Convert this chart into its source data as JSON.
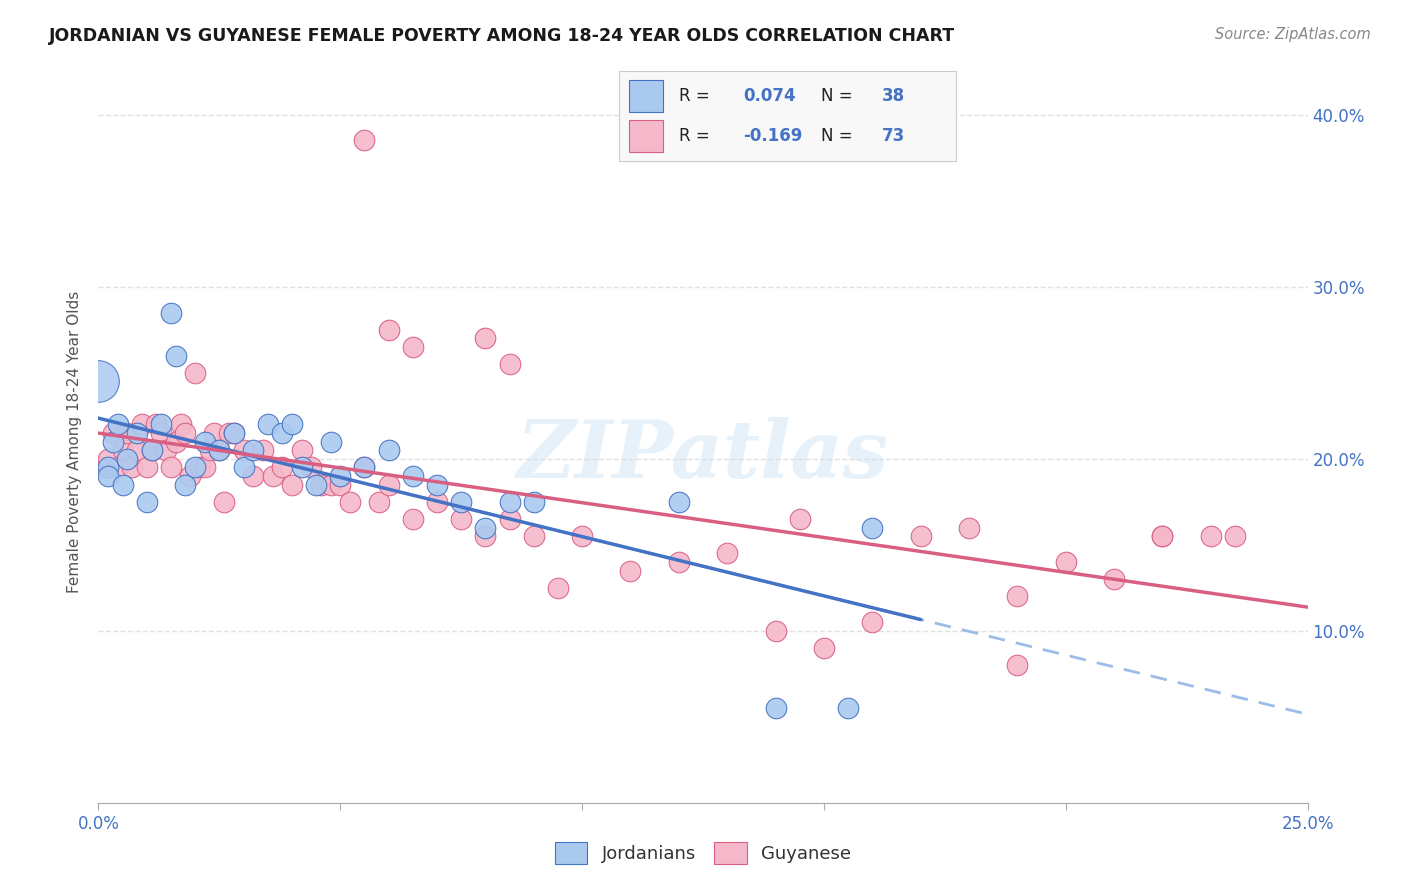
{
  "title": "JORDANIAN VS GUYANESE FEMALE POVERTY AMONG 18-24 YEAR OLDS CORRELATION CHART",
  "source": "Source: ZipAtlas.com",
  "ylabel": "Female Poverty Among 18-24 Year Olds",
  "xlim": [
    0.0,
    0.25
  ],
  "ylim": [
    0.0,
    0.42
  ],
  "x_ticks": [
    0.0,
    0.05,
    0.1,
    0.15,
    0.2,
    0.25
  ],
  "x_tick_labels": [
    "0.0%",
    "",
    "",
    "",
    "",
    "25.0%"
  ],
  "y_ticks": [
    0.0,
    0.1,
    0.2,
    0.3,
    0.4
  ],
  "y_tick_labels_right": [
    "",
    "10.0%",
    "20.0%",
    "30.0%",
    "40.0%"
  ],
  "jordanian_color": "#aac9ef",
  "guyanese_color": "#f5b8cb",
  "trend_jordan_color": "#4472c4",
  "trend_guyana_color": "#d95f82",
  "trend_jordan_dash_color": "#9cbde8",
  "R_jordan": 0.074,
  "N_jordan": 38,
  "R_guyana": -0.169,
  "N_guyana": 73,
  "watermark": "ZIPatlas",
  "background_color": "#ffffff",
  "grid_color": "#e0e0e0",
  "jordan_x": [
    0.002,
    0.002,
    0.003,
    0.004,
    0.005,
    0.006,
    0.008,
    0.01,
    0.011,
    0.013,
    0.015,
    0.016,
    0.018,
    0.02,
    0.022,
    0.025,
    0.028,
    0.03,
    0.032,
    0.035,
    0.038,
    0.04,
    0.042,
    0.045,
    0.048,
    0.05,
    0.055,
    0.06,
    0.065,
    0.07,
    0.075,
    0.08,
    0.085,
    0.09,
    0.12,
    0.14,
    0.155,
    0.16
  ],
  "jordan_y": [
    0.195,
    0.19,
    0.21,
    0.22,
    0.185,
    0.2,
    0.215,
    0.175,
    0.205,
    0.22,
    0.285,
    0.26,
    0.185,
    0.195,
    0.21,
    0.205,
    0.215,
    0.195,
    0.205,
    0.22,
    0.215,
    0.22,
    0.195,
    0.185,
    0.21,
    0.19,
    0.195,
    0.205,
    0.19,
    0.185,
    0.175,
    0.16,
    0.175,
    0.175,
    0.175,
    0.055,
    0.055,
    0.16
  ],
  "guyana_x": [
    0.001,
    0.002,
    0.003,
    0.004,
    0.005,
    0.006,
    0.007,
    0.008,
    0.009,
    0.01,
    0.011,
    0.012,
    0.013,
    0.014,
    0.015,
    0.016,
    0.017,
    0.018,
    0.019,
    0.02,
    0.021,
    0.022,
    0.023,
    0.024,
    0.025,
    0.026,
    0.027,
    0.028,
    0.03,
    0.032,
    0.034,
    0.036,
    0.038,
    0.04,
    0.042,
    0.044,
    0.046,
    0.048,
    0.05,
    0.052,
    0.055,
    0.058,
    0.06,
    0.065,
    0.07,
    0.075,
    0.08,
    0.085,
    0.09,
    0.095,
    0.1,
    0.11,
    0.12,
    0.13,
    0.14,
    0.15,
    0.16,
    0.17,
    0.18,
    0.19,
    0.2,
    0.21,
    0.22,
    0.23,
    0.055,
    0.06,
    0.065,
    0.08,
    0.085,
    0.145,
    0.19,
    0.22,
    0.235
  ],
  "guyana_y": [
    0.195,
    0.2,
    0.215,
    0.195,
    0.205,
    0.215,
    0.195,
    0.205,
    0.22,
    0.195,
    0.205,
    0.22,
    0.215,
    0.205,
    0.195,
    0.21,
    0.22,
    0.215,
    0.19,
    0.25,
    0.195,
    0.195,
    0.205,
    0.215,
    0.205,
    0.175,
    0.215,
    0.215,
    0.205,
    0.19,
    0.205,
    0.19,
    0.195,
    0.185,
    0.205,
    0.195,
    0.185,
    0.185,
    0.185,
    0.175,
    0.195,
    0.175,
    0.185,
    0.165,
    0.175,
    0.165,
    0.155,
    0.165,
    0.155,
    0.125,
    0.155,
    0.135,
    0.14,
    0.145,
    0.1,
    0.09,
    0.105,
    0.155,
    0.16,
    0.08,
    0.14,
    0.13,
    0.155,
    0.155,
    0.385,
    0.275,
    0.265,
    0.27,
    0.255,
    0.165,
    0.12,
    0.155,
    0.155
  ]
}
